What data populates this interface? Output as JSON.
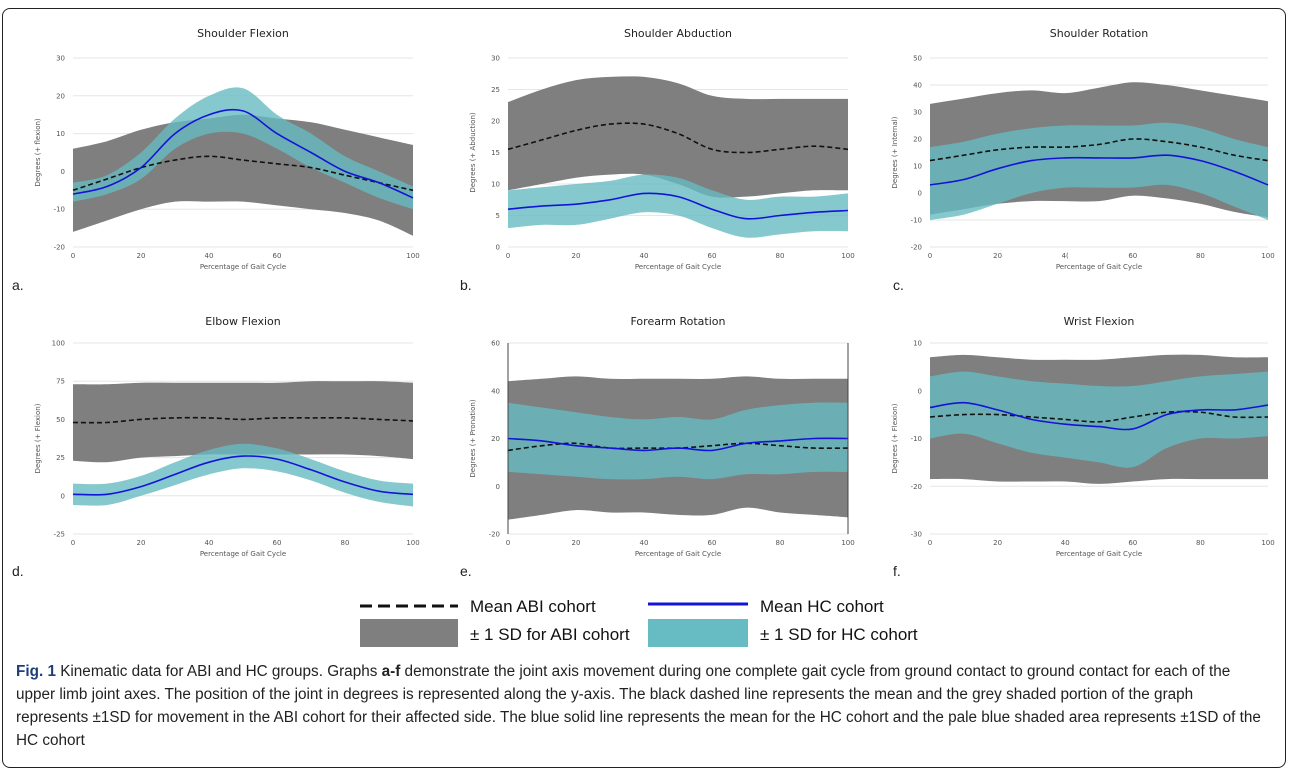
{
  "colors": {
    "abi_band": "#7f7f7f",
    "hc_band": "#66bcc2",
    "abi_mean": "#111111",
    "hc_mean": "#1414d8",
    "grid": "#e6e6e6"
  },
  "legend": {
    "abi_mean": "Mean ABI cohort",
    "hc_mean": "Mean HC cohort",
    "abi_sd": "± 1 SD for ABI cohort",
    "hc_sd": "± 1 SD for HC cohort"
  },
  "caption": {
    "fig": "Fig. 1",
    "text_before": " Kinematic data for ABI and HC groups. Graphs ",
    "letters": "a-f",
    "text_after": " demonstrate the joint axis movement during one complete gait cycle from ground contact to ground contact for each of the upper limb joint axes. The position of the joint in degrees is represented along the y-axis. The black dashed line represents the mean and the grey shaded portion of the graph represents ±1SD for movement in the ABI cohort for their affected side. The blue solid line represents the mean for the HC cohort and the pale blue shaded area represents ±1SD of the HC cohort"
  },
  "chart_data": [
    {
      "type": "area",
      "panel": "a.",
      "title": "Shoulder Flexion",
      "xlabel": "Percentage of Gait Cycle",
      "ylabel": "Degrees (+ flexion)",
      "xlim": [
        0,
        100
      ],
      "ylim": [
        -20,
        30
      ],
      "xticks": [
        "0",
        "20",
        "40",
        "60",
        "",
        "100"
      ],
      "yticks": [
        "-20",
        "-10",
        "0",
        "10",
        "20",
        "30"
      ],
      "x": [
        0,
        10,
        20,
        30,
        40,
        50,
        60,
        70,
        80,
        90,
        100
      ],
      "abi_mean": [
        -5,
        -2,
        1,
        3,
        4,
        3,
        2,
        1,
        -1,
        -3,
        -5
      ],
      "abi_upper": [
        6,
        8,
        11,
        13,
        14,
        15,
        14,
        13,
        11,
        9,
        7
      ],
      "abi_lower": [
        -16,
        -13,
        -10,
        -8,
        -8,
        -8,
        -9,
        -10,
        -11,
        -13,
        -17
      ],
      "hc_mean": [
        -6,
        -4,
        1,
        10,
        15,
        16,
        10,
        5,
        0,
        -3,
        -7
      ],
      "hc_upper": [
        -3,
        -1,
        5,
        14,
        20,
        22,
        15,
        10,
        4,
        0,
        -4
      ],
      "hc_lower": [
        -8,
        -6,
        -2,
        6,
        10,
        10,
        6,
        1,
        -3,
        -7,
        -10
      ]
    },
    {
      "type": "area",
      "panel": "b.",
      "title": "Shoulder Abduction",
      "xlabel": "Percentage of Gait Cycle",
      "ylabel": "Degrees (+ Abduction)",
      "xlim": [
        0,
        100
      ],
      "ylim": [
        0,
        30
      ],
      "xticks": [
        "0",
        "20",
        "40",
        "60",
        "80",
        "100"
      ],
      "yticks": [
        "0",
        "5",
        "10",
        "15",
        "20",
        "25",
        "30"
      ],
      "x": [
        0,
        10,
        20,
        30,
        40,
        50,
        60,
        70,
        80,
        90,
        100
      ],
      "abi_mean": [
        15.5,
        17,
        18.5,
        19.5,
        19.5,
        18,
        15.5,
        15,
        15.5,
        16,
        15.5
      ],
      "abi_upper": [
        23,
        25,
        26.5,
        27,
        27,
        26,
        24,
        23.5,
        23.5,
        23.5,
        23.5
      ],
      "abi_lower": [
        9,
        10,
        11,
        11.5,
        11.5,
        10,
        8,
        8,
        8.5,
        9,
        9
      ],
      "hc_mean": [
        6,
        6.5,
        6.8,
        7.5,
        8.5,
        8,
        6,
        4.5,
        5,
        5.5,
        5.8
      ],
      "hc_upper": [
        9,
        9.5,
        10,
        10.5,
        11.5,
        11,
        9,
        7.5,
        8,
        8,
        8.5
      ],
      "hc_lower": [
        3,
        3.5,
        3.5,
        4.5,
        5.5,
        5,
        3,
        1.5,
        2,
        2.5,
        2.5
      ]
    },
    {
      "type": "area",
      "panel": "c.",
      "title": "Shoulder Rotation",
      "xlabel": "Percentage of Gait Cycle",
      "ylabel": "Degrees (+ Internal)",
      "xlim": [
        0,
        100
      ],
      "ylim": [
        -20,
        50
      ],
      "xticks": [
        "0",
        "20",
        "4(",
        "60",
        "80",
        "100"
      ],
      "yticks": [
        "-20",
        "-10",
        "0",
        "10",
        "20",
        "30",
        "40",
        "50"
      ],
      "x": [
        0,
        10,
        20,
        30,
        40,
        50,
        60,
        70,
        80,
        90,
        100
      ],
      "abi_mean": [
        12,
        14,
        16,
        17,
        17,
        18,
        20,
        19,
        17,
        14,
        12
      ],
      "abi_upper": [
        33,
        35,
        37,
        38,
        37,
        39,
        41,
        40,
        38,
        36,
        34
      ],
      "abi_lower": [
        -8,
        -6,
        -4,
        -3,
        -3,
        -3,
        -1,
        -2,
        -4,
        -7,
        -9
      ],
      "hc_mean": [
        3,
        5,
        9,
        12,
        13,
        13,
        13,
        14,
        12,
        8,
        3
      ],
      "hc_upper": [
        17,
        19,
        22,
        24,
        25,
        25,
        25,
        26,
        24,
        20,
        17
      ],
      "hc_lower": [
        -10,
        -8,
        -4,
        0,
        2,
        2,
        2,
        3,
        0,
        -5,
        -10
      ]
    },
    {
      "type": "area",
      "panel": "d.",
      "title": "Elbow Flexion",
      "xlabel": "Percentage of Gait Cycle",
      "ylabel": "Degrees (+ Flexion)",
      "xlim": [
        0,
        100
      ],
      "ylim": [
        -25,
        100
      ],
      "xticks": [
        "0",
        "20",
        "40",
        "60",
        "80",
        "100"
      ],
      "yticks": [
        "-25",
        "0",
        "25",
        "50",
        "75",
        "100"
      ],
      "x": [
        0,
        10,
        20,
        30,
        40,
        50,
        60,
        70,
        80,
        90,
        100
      ],
      "abi_mean": [
        48,
        48,
        50,
        51,
        51,
        50,
        51,
        51,
        51,
        50,
        49
      ],
      "abi_upper": [
        73,
        73,
        74,
        74,
        74,
        74,
        74,
        75,
        75,
        75,
        74
      ],
      "abi_lower": [
        23,
        22,
        25,
        26,
        27,
        27,
        27,
        27,
        27,
        26,
        24
      ],
      "hc_mean": [
        1,
        1,
        6,
        14,
        22,
        26,
        24,
        17,
        9,
        3,
        1
      ],
      "hc_upper": [
        8,
        8,
        13,
        22,
        30,
        34,
        31,
        24,
        16,
        10,
        8
      ],
      "hc_lower": [
        -6,
        -6,
        0,
        7,
        14,
        18,
        16,
        10,
        2,
        -4,
        -7
      ]
    },
    {
      "type": "area",
      "panel": "e.",
      "title": "Forearm Rotation",
      "xlabel": "Percentage of Gait Cycle",
      "ylabel": "Degrees (+ Pronation)",
      "xlim": [
        0,
        100
      ],
      "ylim": [
        -20,
        60
      ],
      "xticks": [
        "0",
        "20",
        "40",
        "60",
        "80",
        "100"
      ],
      "yticks": [
        "-20",
        "0",
        "20",
        "40",
        "60"
      ],
      "x": [
        0,
        10,
        20,
        30,
        40,
        50,
        60,
        70,
        80,
        90,
        100
      ],
      "abi_mean": [
        15,
        17,
        18,
        16,
        16,
        16,
        17,
        18,
        17,
        16,
        16
      ],
      "abi_upper": [
        44,
        45,
        46,
        45,
        45,
        45,
        45,
        46,
        45,
        45,
        45
      ],
      "abi_lower": [
        -14,
        -12,
        -10,
        -11,
        -11,
        -12,
        -12,
        -9,
        -11,
        -12,
        -13
      ],
      "hc_mean": [
        20,
        19,
        17,
        16,
        15,
        16,
        15,
        18,
        19,
        20,
        20
      ],
      "hc_upper": [
        35,
        33,
        31,
        29,
        28,
        29,
        28,
        32,
        34,
        35,
        35
      ],
      "hc_lower": [
        6,
        5,
        4,
        3,
        3,
        4,
        3,
        5,
        5,
        6,
        6
      ]
    },
    {
      "type": "area",
      "panel": "f.",
      "title": "Wrist Flexion",
      "xlabel": "Percentage of Gait Cycle",
      "ylabel": "Degrees (+ Flexion)",
      "xlim": [
        0,
        100
      ],
      "ylim": [
        -30,
        10
      ],
      "xticks": [
        "0",
        "20",
        "40",
        "60",
        "80",
        "100"
      ],
      "yticks": [
        "-30",
        "-20",
        "-10",
        "0",
        "10"
      ],
      "x": [
        0,
        10,
        20,
        30,
        40,
        50,
        60,
        70,
        80,
        90,
        100
      ],
      "abi_mean": [
        -5.5,
        -5,
        -5,
        -5.5,
        -6,
        -6.5,
        -5.5,
        -4.5,
        -4.5,
        -5.5,
        -5.5
      ],
      "abi_upper": [
        7,
        7.5,
        7,
        6.5,
        6.5,
        6.5,
        7,
        7.5,
        7.5,
        7,
        7
      ],
      "abi_lower": [
        -18.5,
        -18.5,
        -19,
        -19,
        -19,
        -19.5,
        -19,
        -18.5,
        -18.5,
        -18.5,
        -18.5
      ],
      "hc_mean": [
        -3.5,
        -2.5,
        -4,
        -6,
        -7,
        -7.5,
        -8,
        -5,
        -4,
        -4,
        -3
      ],
      "hc_upper": [
        3,
        4,
        3,
        2,
        1.5,
        1,
        1,
        2,
        3,
        3.5,
        4
      ],
      "hc_lower": [
        -10,
        -9,
        -11,
        -13,
        -14,
        -15,
        -16,
        -12,
        -10,
        -10,
        -9.5
      ]
    }
  ]
}
